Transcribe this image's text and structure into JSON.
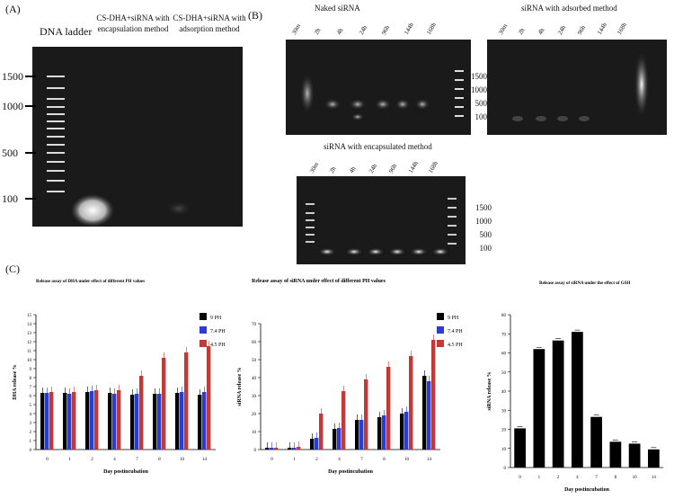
{
  "panel_a": {
    "label": "(A)",
    "headers": [
      "DNA ladder",
      "CS-DHA+siRNA with encapsulation  method",
      "CS-DHA+siRNA with adsorption method"
    ],
    "marker_labels": [
      "1500",
      "1000",
      "500",
      "100"
    ]
  },
  "panel_b": {
    "label": "(B)",
    "gels": [
      {
        "title": "Naked siRNA",
        "lanes": [
          "30m",
          "2h",
          "4h",
          "24h",
          "96h",
          "144h",
          "168h"
        ],
        "markers": [
          "1500",
          "1000",
          "500",
          "100"
        ]
      },
      {
        "title": "siRNA with adsorbed method",
        "lanes": [
          "30m",
          "2h",
          "4h",
          "24h",
          "96h",
          "144h",
          "168h"
        ]
      },
      {
        "title": "siRNA with encapsulated method",
        "lanes": [
          "30m",
          "2h",
          "4h",
          "24h",
          "96h",
          "144h",
          "168h"
        ],
        "markers": [
          "1500",
          "1000",
          "500",
          "100"
        ]
      }
    ]
  },
  "panel_c": {
    "label": "(C)"
  },
  "colors": {
    "s9": "#000000",
    "s74": "#2a3cd8",
    "s45": "#c23a38"
  },
  "chart_data": [
    {
      "type": "bar",
      "title": "Release assay of DHA under effect of different PH values",
      "xlabel": "Day postincubation",
      "ylabel": "DHA release %",
      "categories": [
        "0",
        "1",
        "2",
        "4",
        "7",
        "8",
        "10",
        "14"
      ],
      "ylim": [
        0,
        15
      ],
      "yticks": [
        "0",
        "1",
        "2",
        "3",
        "4",
        "5",
        "6",
        "7",
        "8",
        "9",
        "10",
        "11",
        "12",
        "13",
        "14",
        "15"
      ],
      "legend": "top-right",
      "series": [
        {
          "name": "9 PH",
          "values": [
            6.3,
            6.3,
            6.4,
            6.3,
            6.1,
            6.2,
            6.3,
            6.1
          ]
        },
        {
          "name": "7.4 PH",
          "values": [
            6.3,
            6.2,
            6.5,
            6.2,
            6.2,
            6.2,
            6.4,
            6.4
          ]
        },
        {
          "name": "4.5 PH",
          "values": [
            6.4,
            6.4,
            6.6,
            6.6,
            8.2,
            10.2,
            10.8,
            11.5
          ]
        }
      ]
    },
    {
      "type": "bar",
      "title": "Release assay of siRNA under effect of different PH values",
      "xlabel": "Day postincubation",
      "ylabel": "siRNA release %",
      "categories": [
        "0",
        "1",
        "2",
        "4",
        "7",
        "8",
        "10",
        "14"
      ],
      "ylim": [
        0,
        70
      ],
      "yticks": [
        "0",
        "10",
        "20",
        "30",
        "40",
        "50",
        "60",
        "70"
      ],
      "legend": "top-right",
      "series": [
        {
          "name": "9 PH",
          "values": [
            1,
            1,
            6,
            11.5,
            16.5,
            18,
            20,
            41
          ]
        },
        {
          "name": "7.4 PH",
          "values": [
            1,
            1,
            6.5,
            12,
            16.5,
            19,
            21,
            38
          ]
        },
        {
          "name": "4.5 PH",
          "values": [
            1,
            1.5,
            20,
            32.5,
            39,
            46,
            52,
            61
          ]
        }
      ]
    },
    {
      "type": "bar",
      "title": "Release assay of siRNA under the effect of GSH",
      "xlabel": "Day postincubation",
      "ylabel": "siRNA release %",
      "categories": [
        "0",
        "1",
        "2",
        "4",
        "7",
        "8",
        "10",
        "14"
      ],
      "ylim": [
        0,
        80
      ],
      "yticks": [
        "0",
        "10",
        "20",
        "30",
        "40",
        "50",
        "60",
        "70",
        "80"
      ],
      "values": [
        20.5,
        62,
        66.5,
        71,
        26.5,
        13.5,
        12.5,
        9.5
      ]
    }
  ]
}
